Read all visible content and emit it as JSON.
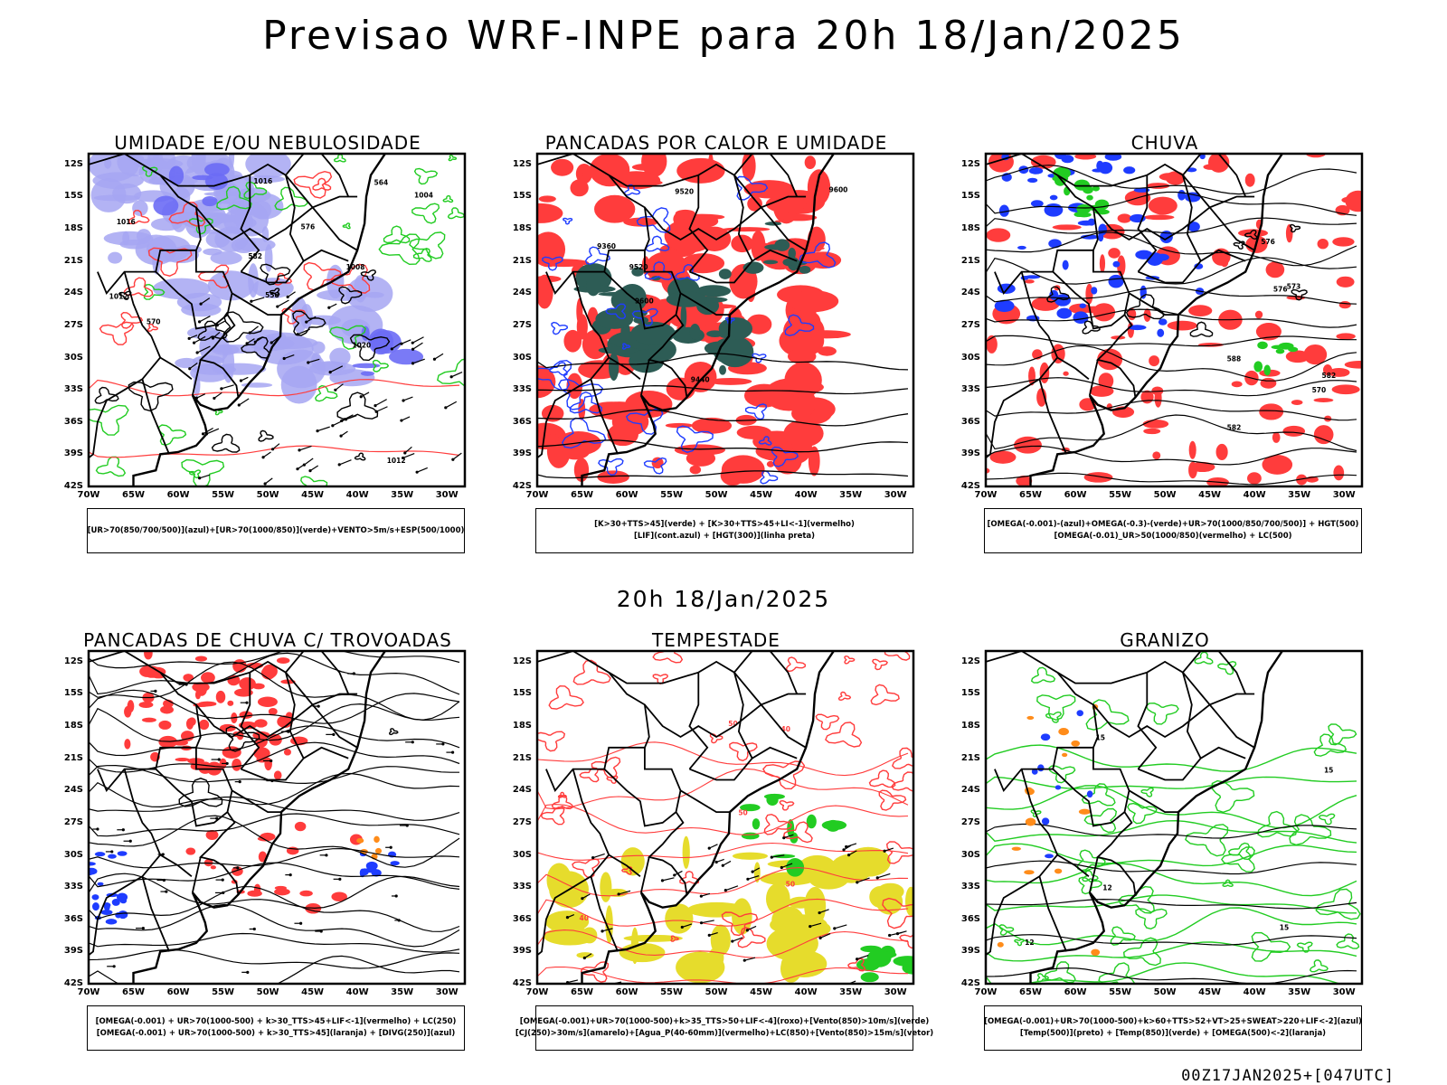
{
  "title": "Previsao WRF-INPE  para 20h 18/Jan/2025",
  "middle_label": "20h 18/Jan/2025",
  "footer": "00Z17JAN2025+[047UTC]",
  "lat_labels": [
    "12S",
    "15S",
    "18S",
    "21S",
    "24S",
    "27S",
    "30S",
    "33S",
    "36S",
    "39S",
    "42S"
  ],
  "lon_labels": [
    "70W",
    "65W",
    "60W",
    "55W",
    "50W",
    "45W",
    "40W",
    "35W",
    "30W"
  ],
  "colors": {
    "red": "#ff3c3c",
    "green": "#22cc22",
    "blue": "#1e3cff",
    "lavender": "#a6a6f2",
    "darkgreen": "#1f4a44",
    "yellow": "#e6dc2c",
    "orange": "#ff8c1a"
  },
  "panels": [
    {
      "title": "UMIDADE E/OU NEBULOSIDADE",
      "legend": [
        "[UR>70(850/700/500)](azul)+[UR>70(1000/850)](verde)+VENTO>5m/s+ESP(500/1000)"
      ],
      "contour_labels": [
        "1012",
        "1016",
        "1008",
        "1004",
        "1016",
        "1012",
        "570",
        "576",
        "582",
        "564",
        "558",
        "1020"
      ]
    },
    {
      "title": "PANCADAS POR CALOR E UMIDADE",
      "legend": [
        "[K>30+TTS>45](verde) + [K>30+TTS>45+LI<-1](vermelho)",
        "[LIF](cont.azul) + [HGT(300)](linha preta)"
      ],
      "contour_labels": [
        "9600",
        "9520",
        "9440",
        "9360",
        "9600",
        "9520"
      ]
    },
    {
      "title": "CHUVA",
      "legend": [
        "[OMEGA(-0.001)-(azul)+OMEGA(-0.3)-(verde)+UR>70(1000/850/700/500)] + HGT(500)",
        "[OMEGA(-0.01)_UR>50(1000/850)(vermelho) + LC(500)"
      ],
      "contour_labels": [
        "588",
        "582",
        "576",
        "570",
        "582",
        "576",
        "573"
      ]
    },
    {
      "title": "PANCADAS DE CHUVA C/ TROVOADAS",
      "legend": [
        "[OMEGA(-0.001) + UR>70(1000-500) + k>30_TTS>45+LIF<-1](vermelho) + LC(250)",
        "[OMEGA(-0.001) + UR>70(1000-500) + k>30_TTS>45](laranja) + [DIVG(250)](azul)"
      ],
      "contour_labels": []
    },
    {
      "title": "TEMPESTADE",
      "legend": [
        "[OMEGA(-0.001)+UR>70(1000-500)+k>35_TTS>50+LIF<-4](roxo)+[Vento(850)>10m/s](verde)",
        "[CJ(250)>30m/s](amarelo)+[Agua_P(40-60mm)](vermelho)+LC(850)+[Vento(850)>15m/s](vetor)"
      ],
      "contour_labels": [
        "50",
        "40",
        "50",
        "40",
        "50"
      ]
    },
    {
      "title": "GRANIZO",
      "legend": [
        "[OMEGA(-0.001)+UR>70(1000-500)+k>60+TTS>52+VT>25+SWEAT>220+LIF<-2](azul)",
        "[Temp(500)](preto) + [Temp(850)](verde) + [OMEGA(500)<-2](laranja)"
      ],
      "contour_labels": [
        "15",
        "12",
        "15",
        "12",
        "15"
      ]
    }
  ]
}
